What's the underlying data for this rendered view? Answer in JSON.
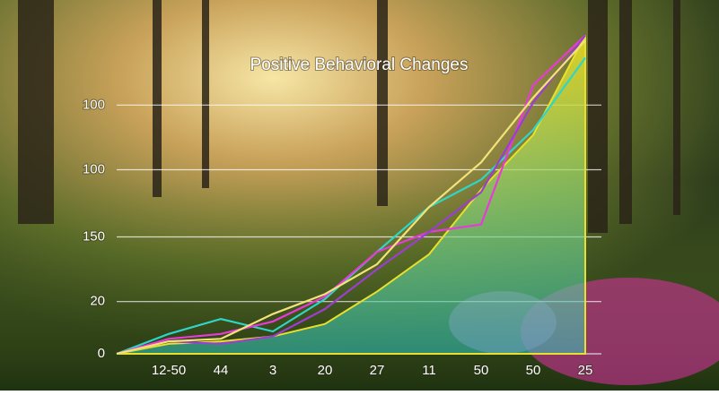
{
  "chart_data": {
    "type": "line",
    "title": "Positive Behavioral Changes",
    "categories": [
      null,
      "12-50",
      "44",
      "3",
      "20",
      "27",
      "11",
      "50",
      "50",
      "25"
    ],
    "series": [
      {
        "color": "#e8e02a",
        "area": true,
        "values": [
          0,
          4,
          5,
          7,
          12,
          25,
          40,
          66,
          88,
          128
        ]
      },
      {
        "color": "#2fd6c8",
        "values": [
          0,
          8,
          14,
          9,
          22,
          41,
          59,
          70,
          90,
          119
        ]
      },
      {
        "color": "#e83ad8",
        "values": [
          0,
          6,
          8,
          13,
          23,
          41,
          49,
          52,
          108,
          128
        ]
      },
      {
        "color": "#9b3fd0",
        "values": [
          0,
          5,
          4,
          7,
          18,
          34,
          49,
          65,
          101,
          128
        ]
      },
      {
        "color": "#f2e27a",
        "values": [
          0,
          5,
          6,
          16,
          24,
          36,
          59,
          77,
          103,
          126
        ]
      }
    ],
    "ylim": [
      0,
      130
    ],
    "yticks": [
      0,
      {
        "value": 21,
        "label": "20"
      },
      {
        "value": 47,
        "label": "150"
      },
      {
        "value": 74,
        "label": "100"
      },
      {
        "value": 100,
        "label": "100"
      }
    ],
    "grid": true
  }
}
